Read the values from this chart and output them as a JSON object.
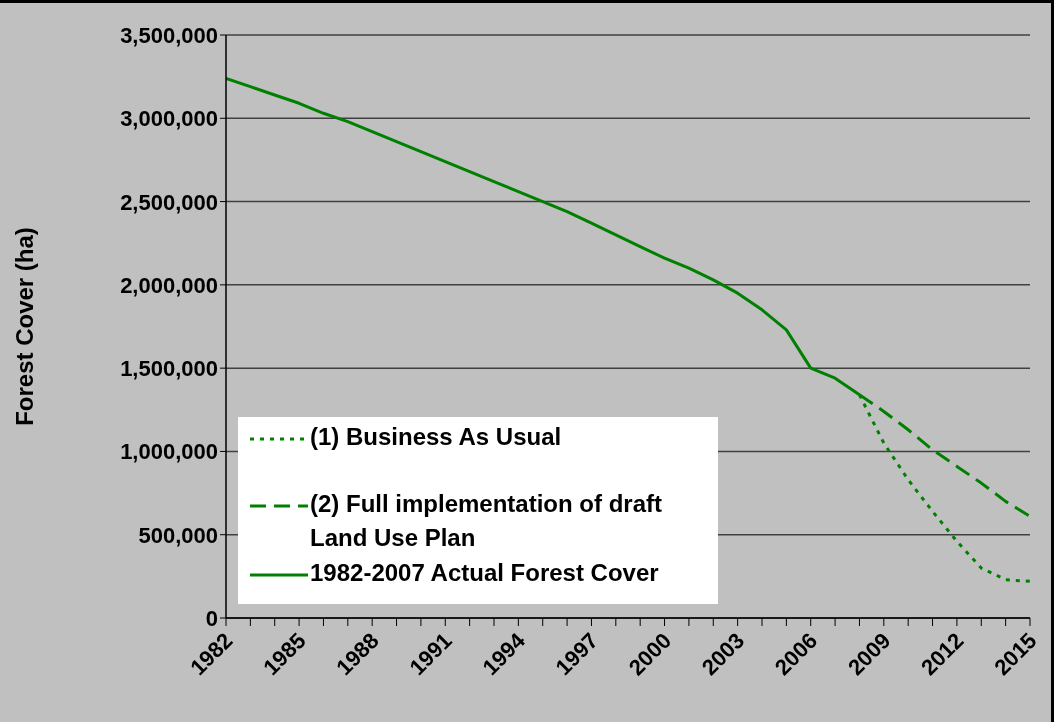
{
  "chart_data": {
    "type": "line",
    "ylabel": "Forest Cover (ha)",
    "xlim": [
      1982,
      2015
    ],
    "xticks": [
      1982,
      {
        "value": 1983,
        "label": null
      },
      {
        "value": 1984,
        "label": null
      },
      1985,
      {
        "value": 1986,
        "label": null
      },
      {
        "value": 1987,
        "label": null
      },
      1988,
      {
        "value": 1989,
        "label": null
      },
      {
        "value": 1990,
        "label": null
      },
      1991,
      {
        "value": 1992,
        "label": null
      },
      {
        "value": 1993,
        "label": null
      },
      1994,
      {
        "value": 1995,
        "label": null
      },
      {
        "value": 1996,
        "label": null
      },
      1997,
      {
        "value": 1998,
        "label": null
      },
      {
        "value": 1999,
        "label": null
      },
      2000,
      {
        "value": 2001,
        "label": null
      },
      {
        "value": 2002,
        "label": null
      },
      2003,
      {
        "value": 2004,
        "label": null
      },
      {
        "value": 2005,
        "label": null
      },
      2006,
      {
        "value": 2007,
        "label": null
      },
      {
        "value": 2008,
        "label": null
      },
      2009,
      {
        "value": 2010,
        "label": null
      },
      {
        "value": 2011,
        "label": null
      },
      2012,
      {
        "value": 2013,
        "label": null
      },
      {
        "value": 2014,
        "label": null
      },
      2015
    ],
    "ylim": [
      0,
      3500000
    ],
    "yticks": [
      {
        "value": 0,
        "label": "0"
      },
      {
        "value": 500000,
        "label": "500,000"
      },
      {
        "value": 1000000,
        "label": "1,000,000"
      },
      {
        "value": 1500000,
        "label": "1,500,000"
      },
      {
        "value": 2000000,
        "label": "2,000,000"
      },
      {
        "value": 2500000,
        "label": "2,500,000"
      },
      {
        "value": 3000000,
        "label": "3,000,000"
      },
      {
        "value": 3500000,
        "label": "3,500,000"
      }
    ],
    "grid": "y",
    "legend": "bottom left",
    "marker": "none",
    "series": [
      {
        "name": "(1) Business As Usual",
        "color": "#008000",
        "line_style": "dotted",
        "x": [
          2008,
          2009,
          2010,
          2011,
          2012,
          2013,
          2014,
          2015
        ],
        "values": [
          1340000,
          1050000,
          830000,
          640000,
          460000,
          300000,
          230000,
          220000
        ]
      },
      {
        "name": "(2) Full implementation of draft Land Use Plan",
        "color": "#008000",
        "line_style": "dashed",
        "x": [
          2008,
          2009,
          2010,
          2011,
          2012,
          2013,
          2014,
          2015
        ],
        "values": [
          1340000,
          1240000,
          1130000,
          1010000,
          910000,
          810000,
          700000,
          610000
        ]
      },
      {
        "name": "1982-2007 Actual Forest Cover",
        "color": "#008000",
        "line_style": "solid",
        "x": [
          1982,
          1983,
          1984,
          1985,
          1986,
          1987,
          1988,
          1989,
          1990,
          1991,
          1992,
          1993,
          1994,
          1995,
          1996,
          1997,
          1998,
          1999,
          2000,
          2001,
          2002,
          2003,
          2004,
          2005,
          2006,
          2007,
          2008
        ],
        "values": [
          3240000,
          3190000,
          3140000,
          3090000,
          3030000,
          2980000,
          2920000,
          2860000,
          2800000,
          2740000,
          2680000,
          2620000,
          2560000,
          2500000,
          2440000,
          2370000,
          2300000,
          2230000,
          2160000,
          2100000,
          2030000,
          1950000,
          1850000,
          1730000,
          1500000,
          1440000,
          1340000
        ]
      }
    ]
  }
}
